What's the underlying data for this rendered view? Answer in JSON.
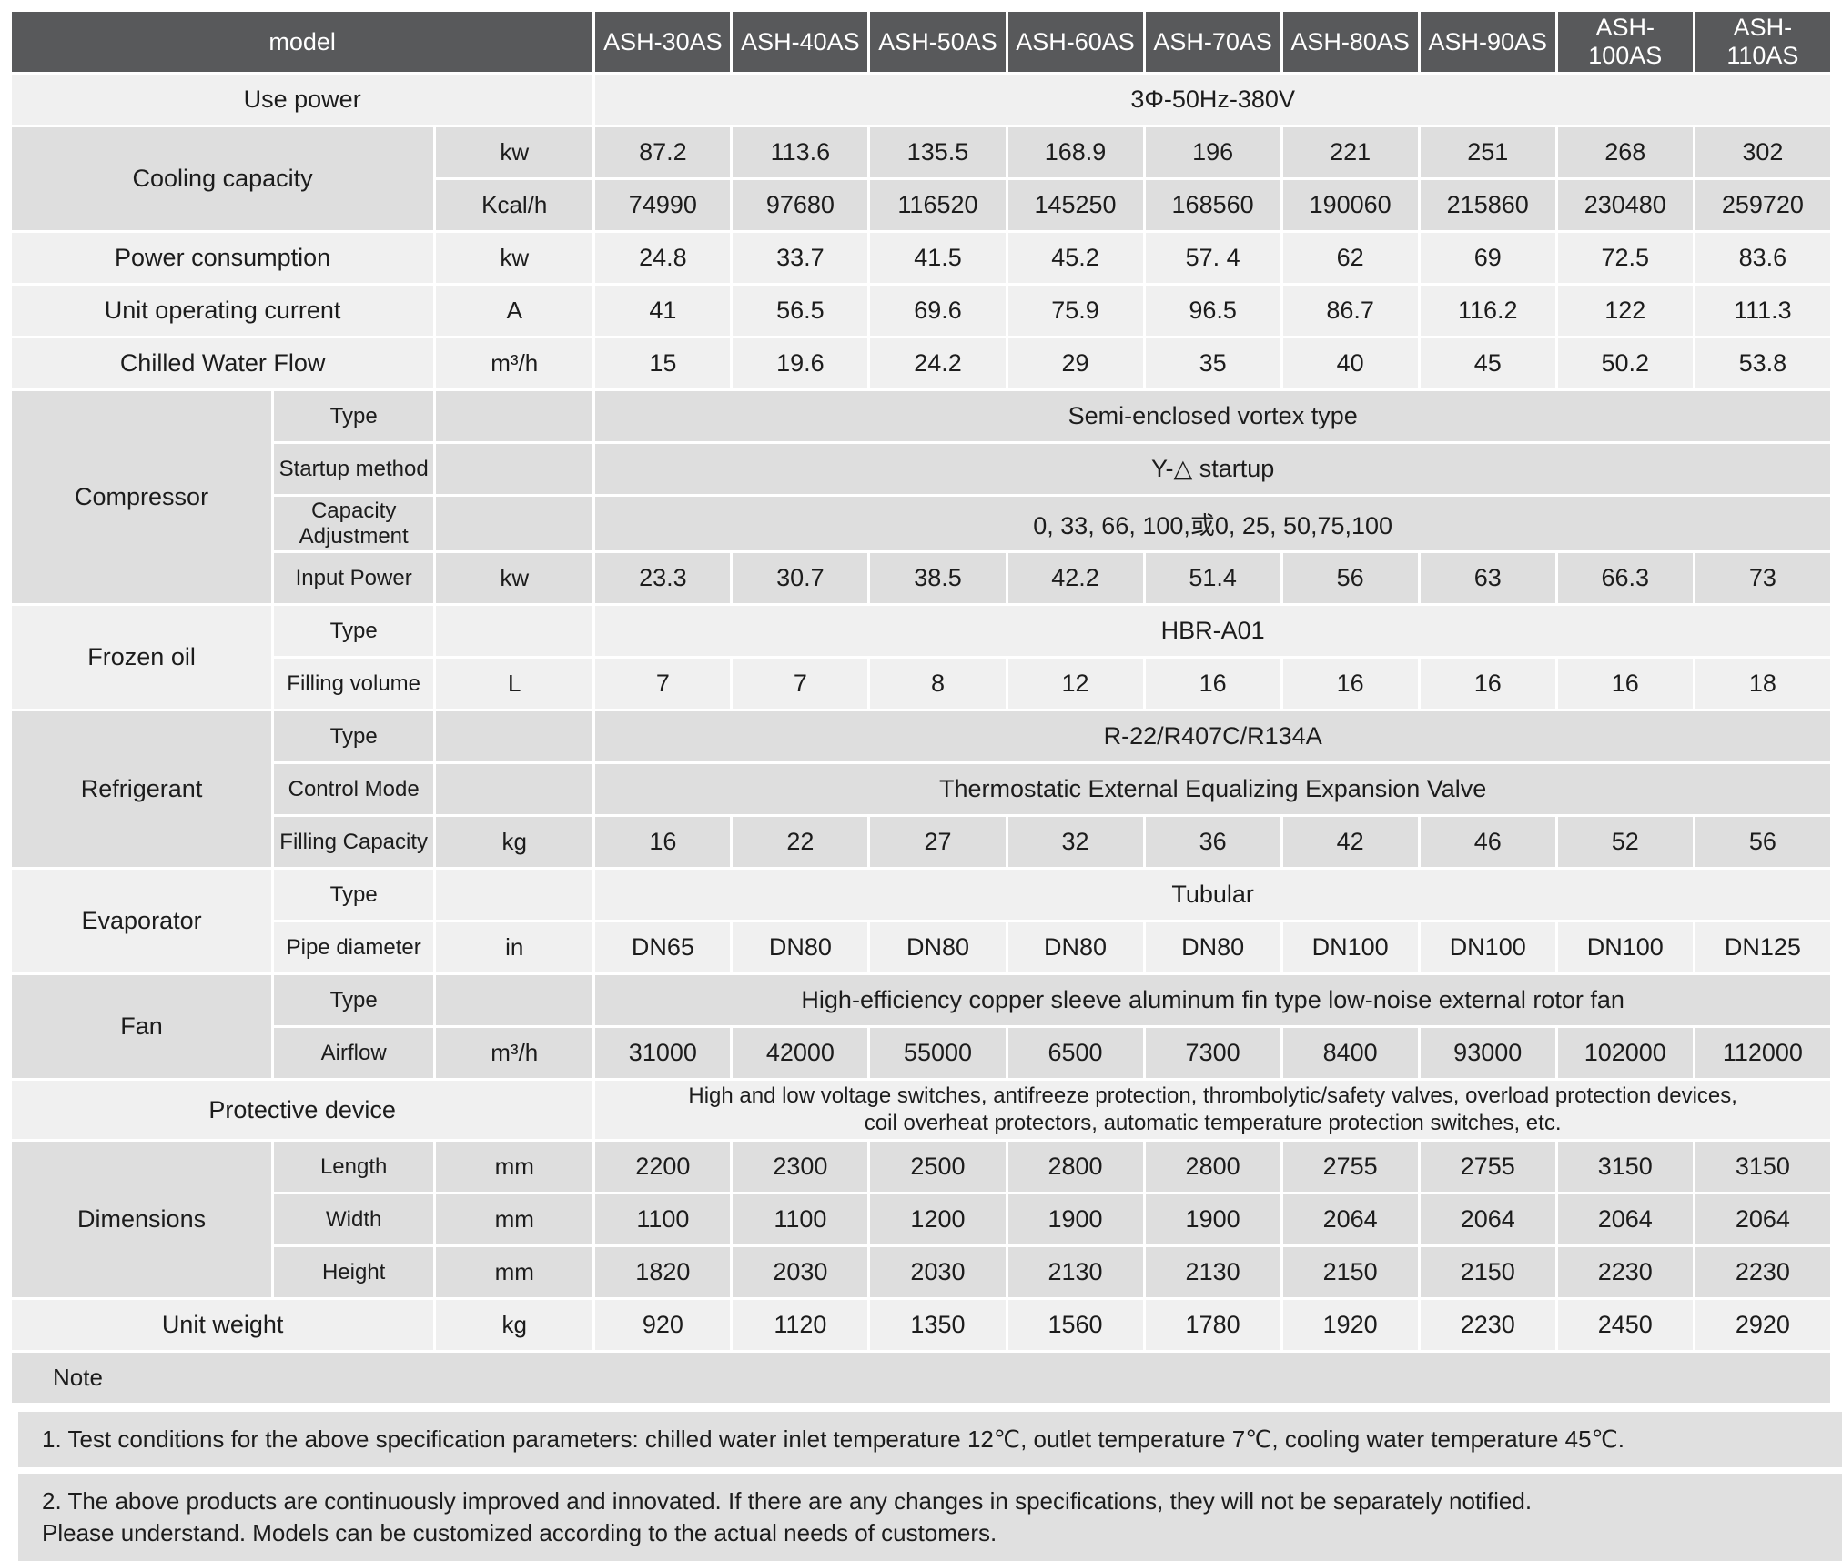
{
  "colors": {
    "header_bg": "#58595b",
    "row_light": "#f0f0f0",
    "row_dark": "#dedede",
    "note_bg": "#e0e0e0"
  },
  "table": {
    "model_label": "model",
    "models": [
      "ASH-30AS",
      "ASH-40AS",
      "ASH-50AS",
      "ASH-60AS",
      "ASH-70AS",
      "ASH-80AS",
      "ASH-90AS",
      "ASH-100AS",
      "ASH-110AS"
    ],
    "use_power": {
      "label": "Use power",
      "value": "3Φ-50Hz-380V"
    },
    "cooling": {
      "label": "Cooling capacity",
      "rows": [
        {
          "unit": "kw",
          "values": [
            "87.2",
            "113.6",
            "135.5",
            "168.9",
            "196",
            "221",
            "251",
            "268",
            "302"
          ]
        },
        {
          "unit": "Kcal/h",
          "values": [
            "74990",
            "97680",
            "116520",
            "145250",
            "168560",
            "190060",
            "215860",
            "230480",
            "259720"
          ]
        }
      ]
    },
    "power_consumption": {
      "label": "Power consumption",
      "unit": "kw",
      "values": [
        "24.8",
        "33.7",
        "41.5",
        "45.2",
        "57. 4",
        "62",
        "69",
        "72.5",
        "83.6"
      ]
    },
    "operating_current": {
      "label": "Unit operating current",
      "unit": "A",
      "values": [
        "41",
        "56.5",
        "69.6",
        "75.9",
        "96.5",
        "86.7",
        "116.2",
        "122",
        "111.3"
      ]
    },
    "chilled_water_flow": {
      "label": "Chilled Water Flow",
      "unit": "m³/h",
      "values": [
        "15",
        "19.6",
        "24.2",
        "29",
        "35",
        "40",
        "45",
        "50.2",
        "53.8"
      ]
    },
    "compressor": {
      "label": "Compressor",
      "type": {
        "label": "Type",
        "value": "Semi-enclosed vortex type"
      },
      "startup": {
        "label": "Startup method",
        "value": "Y-△  startup"
      },
      "capacity_adjustment": {
        "label": "Capacity Adjustment",
        "value": "0, 33, 66, 100,或0, 25, 50,75,100"
      },
      "input_power": {
        "label": "Input Power",
        "unit": "kw",
        "values": [
          "23.3",
          "30.7",
          "38.5",
          "42.2",
          "51.4",
          "56",
          "63",
          "66.3",
          "73"
        ]
      }
    },
    "frozen_oil": {
      "label": "Frozen oil",
      "type": {
        "label": "Type",
        "value": "HBR-A01"
      },
      "filling_volume": {
        "label": "Filling volume",
        "unit": "L",
        "values": [
          "7",
          "7",
          "8",
          "12",
          "16",
          "16",
          "16",
          "16",
          "18"
        ]
      }
    },
    "refrigerant": {
      "label": "Refrigerant",
      "type": {
        "label": "Type",
        "value": "R-22/R407C/R134A"
      },
      "control_mode": {
        "label": "Control Mode",
        "value": "Thermostatic External Equalizing Expansion Valve"
      },
      "filling_capacity": {
        "label": "Filling Capacity",
        "unit": "kg",
        "values": [
          "16",
          "22",
          "27",
          "32",
          "36",
          "42",
          "46",
          "52",
          "56"
        ]
      }
    },
    "evaporator": {
      "label": "Evaporator",
      "type": {
        "label": "Type",
        "value": "Tubular"
      },
      "pipe_diameter": {
        "label": "Pipe diameter",
        "unit": "in",
        "values": [
          "DN65",
          "DN80",
          "DN80",
          "DN80",
          "DN80",
          "DN100",
          "DN100",
          "DN100",
          "DN125"
        ]
      }
    },
    "fan": {
      "label": "Fan",
      "type": {
        "label": "Type",
        "value": "High-efficiency copper sleeve aluminum fin type low-noise external rotor fan"
      },
      "airflow": {
        "label": "Airflow",
        "unit": "m³/h",
        "values": [
          "31000",
          "42000",
          "55000",
          "6500",
          "7300",
          "8400",
          "93000",
          "102000",
          "112000"
        ]
      }
    },
    "protective_device": {
      "label": "Protective device",
      "value_line1": "High and low voltage switches, antifreeze protection, thrombolytic/safety valves, overload protection devices,",
      "value_line2": "coil overheat protectors, automatic temperature protection switches, etc."
    },
    "dimensions": {
      "label": "Dimensions",
      "length": {
        "label": "Length",
        "unit": "mm",
        "values": [
          "2200",
          "2300",
          "2500",
          "2800",
          "2800",
          "2755",
          "2755",
          "3150",
          "3150"
        ]
      },
      "width": {
        "label": "Width",
        "unit": "mm",
        "values": [
          "1100",
          "1100",
          "1200",
          "1900",
          "1900",
          "2064",
          "2064",
          "2064",
          "2064"
        ]
      },
      "height": {
        "label": "Height",
        "unit": "mm",
        "values": [
          "1820",
          "2030",
          "2030",
          "2130",
          "2130",
          "2150",
          "2150",
          "2230",
          "2230"
        ]
      }
    },
    "unit_weight": {
      "label": "Unit weight",
      "unit": "kg",
      "values": [
        "920",
        "1120",
        "1350",
        "1560",
        "1780",
        "1920",
        "2230",
        "2450",
        "2920"
      ]
    }
  },
  "notes": {
    "label": "Note",
    "note1": "1. Test conditions for the above specification parameters: chilled water inlet temperature 12℃, outlet temperature 7℃, cooling water temperature 45℃.",
    "note2_line1": "2. The above products are continuously improved and innovated. If there are any changes in specifications, they will not be separately notified.",
    "note2_line2": "Please understand. Models can be customized according to the actual needs of customers."
  }
}
